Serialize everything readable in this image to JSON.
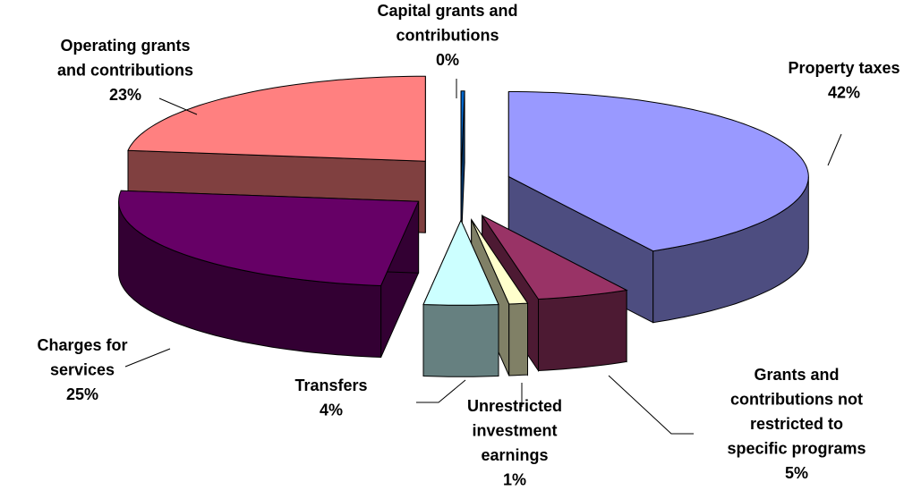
{
  "chart_data": {
    "type": "pie3d",
    "categories": [
      "Property taxes",
      "Grants and\ncontributions not\nrestricted to\nspecific programs",
      "Unrestricted\ninvestment\nearnings",
      "Transfers",
      "Charges for\nservices",
      "Operating grants\nand contributions",
      "Capital grants and\ncontributions"
    ],
    "values": [
      42,
      5,
      1,
      4,
      25,
      23,
      0
    ],
    "value_labels": [
      "42%",
      "5%",
      "1%",
      "4%",
      "25%",
      "23%",
      "0%"
    ],
    "colors": [
      "#9999ff",
      "#993366",
      "#ffffcc",
      "#ccffff",
      "#660066",
      "#ff8080",
      "#0066cc"
    ]
  }
}
